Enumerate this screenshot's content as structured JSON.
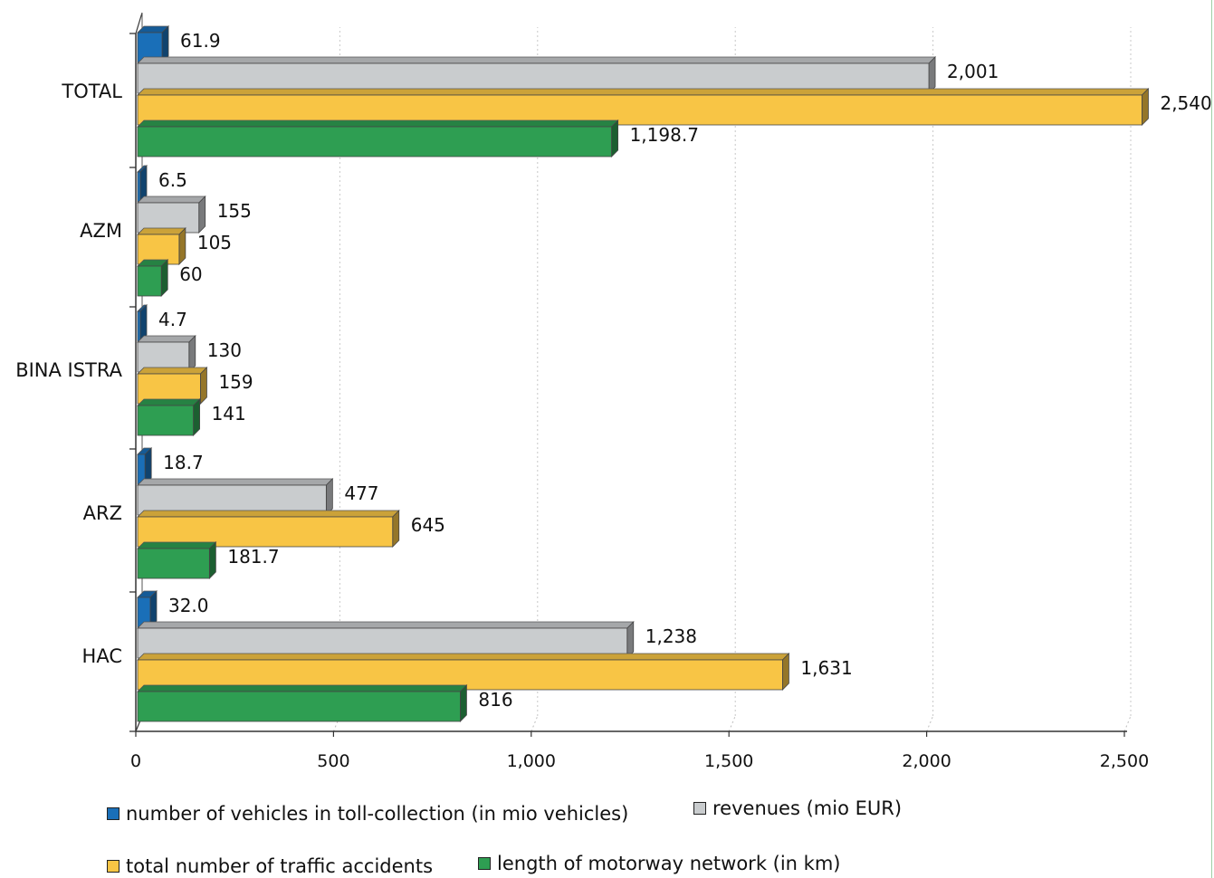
{
  "chart_data": {
    "type": "bar",
    "orientation": "horizontal",
    "categories": [
      "TOTAL",
      "AZM",
      "BINA ISTRA",
      "ARZ",
      "HAC"
    ],
    "series": [
      {
        "name": "number of vehicles in toll-collection (in mio vehicles)",
        "color": "#1a6fb8",
        "values": [
          61.9,
          6.5,
          4.7,
          18.7,
          32.0
        ],
        "labels": [
          "61.9",
          "6.5",
          "4.7",
          "18.7",
          "32.0"
        ]
      },
      {
        "name": "revenues (mio EUR)",
        "color": "#c9ccce",
        "values": [
          2001,
          155,
          130,
          477,
          1238
        ],
        "labels": [
          "2,001",
          "155",
          "130",
          "477",
          "1,238"
        ]
      },
      {
        "name": "total number of traffic accidents",
        "color": "#f8c545",
        "values": [
          2540,
          105,
          159,
          645,
          1631
        ],
        "labels": [
          "2,540",
          "105",
          "159",
          "645",
          "1,631"
        ]
      },
      {
        "name": "length of motorway network (in km)",
        "color": "#2e9e52",
        "values": [
          1198.7,
          60,
          141,
          181.7,
          816
        ],
        "labels": [
          "1,198.7",
          "60",
          "141",
          "181.7",
          "816"
        ]
      }
    ],
    "xlim": [
      0,
      2500
    ],
    "xticks": [
      0,
      500,
      1000,
      1500,
      2000,
      2500
    ],
    "xtick_labels": [
      "0",
      "500",
      "1,000",
      "1,500",
      "2,000",
      "2,500"
    ],
    "grid": "vertical dotted",
    "legend_position": "bottom",
    "style": "3d"
  },
  "legend": {
    "items": [
      {
        "label": "number of vehicles in toll-collection (in mio vehicles)",
        "color": "#1a6fb8"
      },
      {
        "label": "revenues (mio EUR)",
        "color": "#c9ccce"
      },
      {
        "label": "total number of traffic accidents",
        "color": "#f8c545"
      },
      {
        "label": "length of motorway network (in km)",
        "color": "#2e9e52"
      }
    ]
  }
}
